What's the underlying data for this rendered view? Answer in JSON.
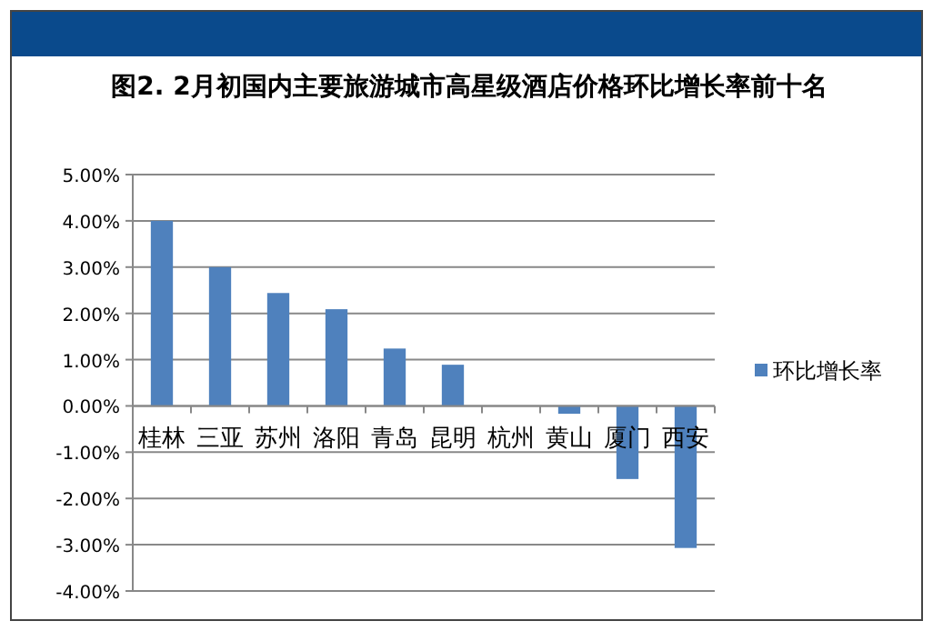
{
  "chart_data": {
    "type": "bar",
    "title": "图2. 2月初国内主要旅游城市高星级酒店价格环比增长率前十名",
    "categories": [
      "桂林",
      "三亚",
      "苏州",
      "洛阳",
      "青岛",
      "昆明",
      "杭州",
      "黄山",
      "厦门",
      "西安"
    ],
    "series": [
      {
        "name": "环比增长率",
        "color": "#4f81bd",
        "values": [
          4.0,
          3.0,
          2.44,
          2.09,
          1.24,
          0.89,
          0,
          -0.17,
          -1.58,
          -3.07
        ]
      }
    ],
    "ylim": [
      -4,
      5
    ],
    "yticks": [
      {
        "value": -4,
        "label": "-4.00%"
      },
      {
        "value": -3,
        "label": "-3.00%"
      },
      {
        "value": -2,
        "label": "-2.00%"
      },
      {
        "value": -1,
        "label": "-1.00%"
      },
      {
        "value": 0,
        "label": "0.00%"
      },
      {
        "value": 1,
        "label": "1.00%"
      },
      {
        "value": 2,
        "label": "2.00%"
      },
      {
        "value": 3,
        "label": "3.00%"
      },
      {
        "value": 4,
        "label": "4.00%"
      },
      {
        "value": 5,
        "label": "5.00%"
      }
    ],
    "grid": "y",
    "legend": "right"
  }
}
